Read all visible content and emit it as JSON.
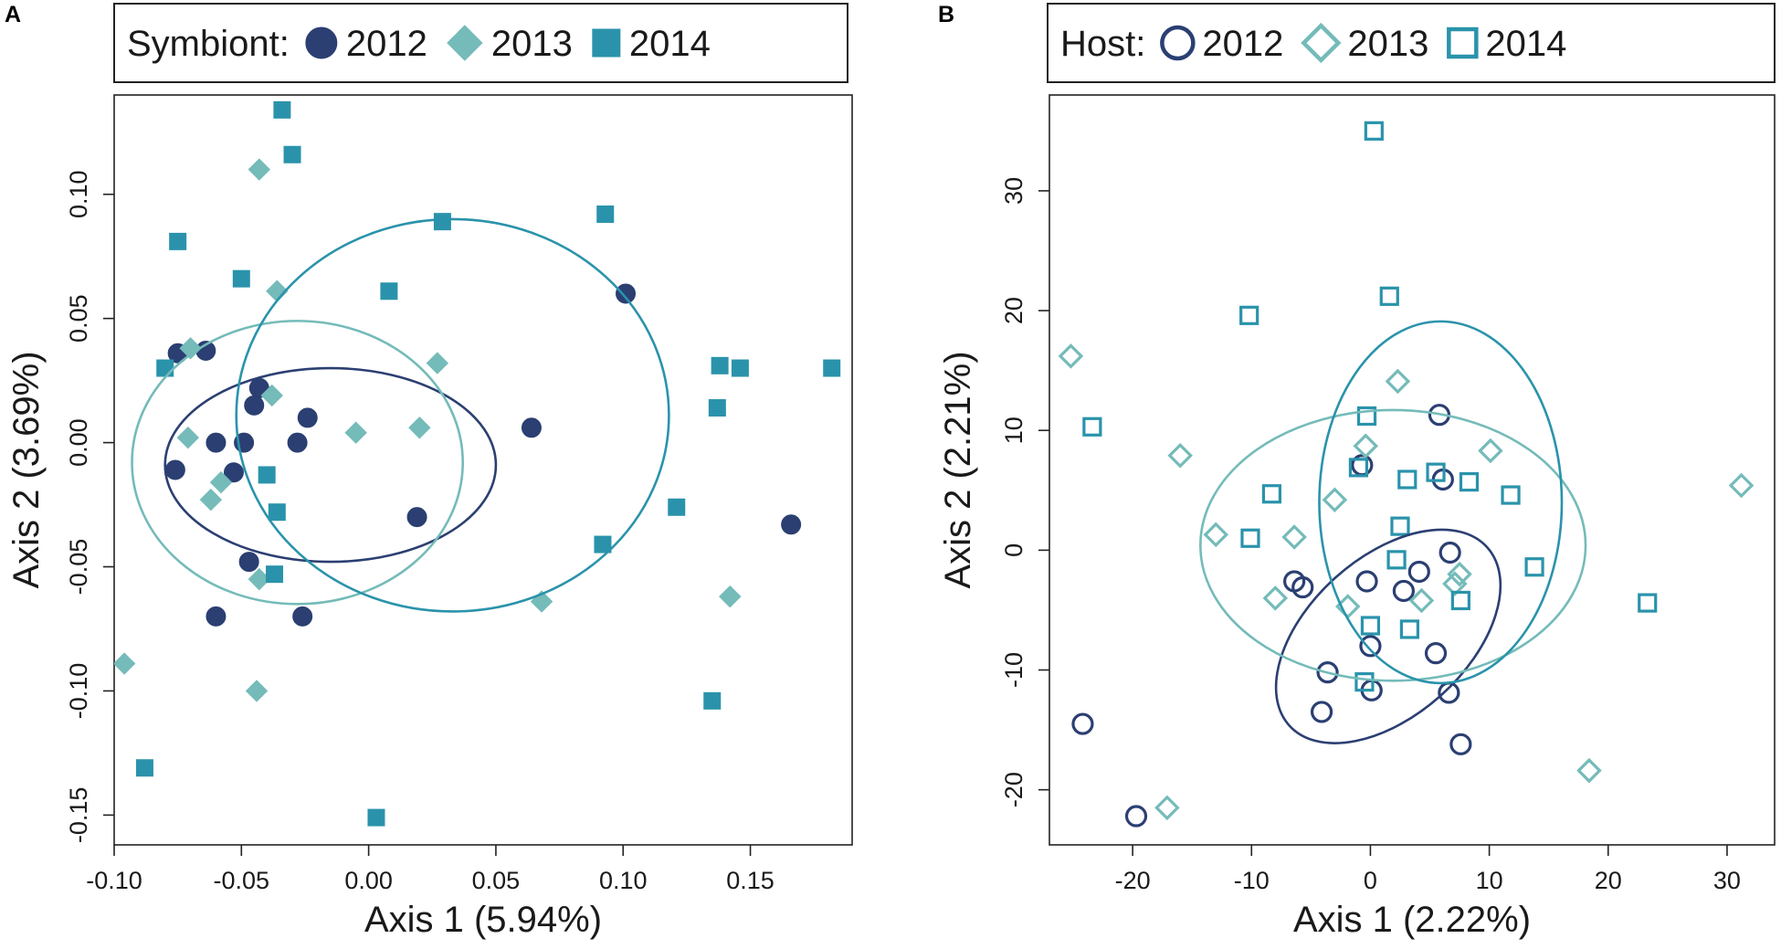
{
  "colors": {
    "y2012": "#2b3f72",
    "y2013": "#74bbb9",
    "y2014": "#2a93ab"
  },
  "chart_data": [
    {
      "type": "scatter",
      "panel": "A",
      "filled": true,
      "legend_title": "Symbiont:",
      "xlabel": "Axis 1 (5.94%)",
      "ylabel": "Axis 2 (3.69%)",
      "xlim": [
        -0.1,
        0.19
      ],
      "ylim": [
        -0.162,
        0.14
      ],
      "xticks": [
        -0.1,
        -0.05,
        0.0,
        0.05,
        0.1,
        0.15
      ],
      "xtick_labels": [
        "-0.10",
        "-0.05",
        "0.00",
        "0.05",
        "0.10",
        "0.15"
      ],
      "yticks": [
        -0.15,
        -0.1,
        -0.05,
        0.0,
        0.05,
        0.1
      ],
      "ytick_labels": [
        "-0.15",
        "-0.10",
        "-0.05",
        "0.00",
        "0.05",
        "0.10"
      ],
      "series": [
        {
          "name": "2012",
          "marker": "circle",
          "points": [
            [
              -0.075,
              0.036
            ],
            [
              -0.064,
              0.037
            ],
            [
              -0.043,
              0.022
            ],
            [
              -0.045,
              0.015
            ],
            [
              -0.024,
              0.01
            ],
            [
              -0.076,
              -0.011
            ],
            [
              -0.06,
              0.0
            ],
            [
              -0.049,
              0.0
            ],
            [
              -0.053,
              -0.012
            ],
            [
              -0.028,
              0.0
            ],
            [
              0.064,
              0.006
            ],
            [
              0.101,
              0.06
            ],
            [
              0.019,
              -0.03
            ],
            [
              -0.047,
              -0.048
            ],
            [
              -0.06,
              -0.07
            ],
            [
              -0.026,
              -0.07
            ],
            [
              0.166,
              -0.033
            ]
          ],
          "ellipse": {
            "cx": -0.015,
            "cy": -0.009,
            "rx": 0.065,
            "ry": 0.039,
            "angle_deg": 0
          }
        },
        {
          "name": "2013",
          "marker": "diamond",
          "points": [
            [
              -0.043,
              0.11
            ],
            [
              -0.036,
              0.061
            ],
            [
              -0.07,
              0.038
            ],
            [
              -0.038,
              0.019
            ],
            [
              0.027,
              0.032
            ],
            [
              -0.071,
              0.002
            ],
            [
              -0.005,
              0.004
            ],
            [
              0.02,
              0.006
            ],
            [
              -0.058,
              -0.016
            ],
            [
              -0.062,
              -0.023
            ],
            [
              -0.043,
              -0.055
            ],
            [
              0.068,
              -0.064
            ],
            [
              0.142,
              -0.062
            ],
            [
              -0.096,
              -0.089
            ],
            [
              -0.044,
              -0.1
            ]
          ],
          "ellipse": {
            "cx": -0.028,
            "cy": -0.008,
            "rx": 0.065,
            "ry": 0.057,
            "angle_deg": 0
          }
        },
        {
          "name": "2014",
          "marker": "square",
          "points": [
            [
              -0.034,
              0.134
            ],
            [
              -0.03,
              0.116
            ],
            [
              0.029,
              0.089
            ],
            [
              0.093,
              0.092
            ],
            [
              -0.075,
              0.081
            ],
            [
              -0.05,
              0.066
            ],
            [
              0.008,
              0.061
            ],
            [
              -0.08,
              0.03
            ],
            [
              0.138,
              0.031
            ],
            [
              0.146,
              0.03
            ],
            [
              0.182,
              0.03
            ],
            [
              0.137,
              0.014
            ],
            [
              -0.04,
              -0.013
            ],
            [
              -0.036,
              -0.028
            ],
            [
              0.121,
              -0.026
            ],
            [
              0.092,
              -0.041
            ],
            [
              -0.037,
              -0.053
            ],
            [
              0.135,
              -0.104
            ],
            [
              -0.088,
              -0.131
            ],
            [
              0.003,
              -0.151
            ]
          ],
          "ellipse": {
            "cx": 0.033,
            "cy": 0.011,
            "rx": 0.085,
            "ry": 0.079,
            "angle_deg": 0
          }
        }
      ]
    },
    {
      "type": "scatter",
      "panel": "B",
      "filled": false,
      "legend_title": "Host:",
      "xlabel": "Axis 1 (2.22%)",
      "ylabel": "Axis 2 (2.21%)",
      "xlim": [
        -27,
        34
      ],
      "ylim": [
        -24.6,
        38
      ],
      "xticks": [
        -20,
        -10,
        0,
        10,
        20,
        30
      ],
      "xtick_labels": [
        "-20",
        "-10",
        "0",
        "10",
        "20",
        "30"
      ],
      "yticks": [
        -20,
        -10,
        0,
        10,
        20,
        30
      ],
      "ytick_labels": [
        "-20",
        "-10",
        "0",
        "10",
        "20",
        "30"
      ],
      "series": [
        {
          "name": "2012",
          "marker": "circle",
          "points": [
            [
              5.8,
              11.3
            ],
            [
              -0.7,
              7.1
            ],
            [
              6.1,
              5.9
            ],
            [
              6.7,
              -0.2
            ],
            [
              -0.3,
              -2.6
            ],
            [
              4.1,
              -1.8
            ],
            [
              -6.4,
              -2.6
            ],
            [
              -5.7,
              -3.1
            ],
            [
              2.8,
              -3.4
            ],
            [
              0.0,
              -8.0
            ],
            [
              5.5,
              -8.6
            ],
            [
              -3.6,
              -10.2
            ],
            [
              6.6,
              -11.9
            ],
            [
              0.1,
              -11.7
            ],
            [
              -4.1,
              -13.5
            ],
            [
              7.6,
              -16.2
            ],
            [
              -24.2,
              -14.5
            ],
            [
              -19.7,
              -22.2
            ]
          ],
          "ellipse": {
            "cx": 1.5,
            "cy": -7.2,
            "rx": 11.2,
            "ry": 6.6,
            "angle_deg": -42
          }
        },
        {
          "name": "2013",
          "marker": "diamond",
          "points": [
            [
              -25.2,
              16.2
            ],
            [
              2.3,
              14.1
            ],
            [
              10.1,
              8.3
            ],
            [
              -16.0,
              7.9
            ],
            [
              -0.4,
              8.7
            ],
            [
              -3.0,
              4.2
            ],
            [
              -13.0,
              1.3
            ],
            [
              -6.4,
              1.1
            ],
            [
              7.5,
              -2.0
            ],
            [
              7.1,
              -2.8
            ],
            [
              -8.0,
              -4.0
            ],
            [
              -1.9,
              -4.7
            ],
            [
              4.3,
              -4.2
            ],
            [
              31.2,
              5.4
            ],
            [
              18.4,
              -18.4
            ],
            [
              -17.1,
              -21.5
            ]
          ],
          "ellipse": {
            "cx": 1.9,
            "cy": 0.4,
            "rx": 16.2,
            "ry": 11.3,
            "angle_deg": 0
          }
        },
        {
          "name": "2014",
          "marker": "square",
          "points": [
            [
              0.3,
              35.0
            ],
            [
              1.6,
              21.2
            ],
            [
              -10.2,
              19.6
            ],
            [
              -23.4,
              10.3
            ],
            [
              -0.3,
              11.2
            ],
            [
              -1.0,
              6.9
            ],
            [
              5.5,
              6.5
            ],
            [
              3.1,
              5.9
            ],
            [
              8.3,
              5.7
            ],
            [
              11.8,
              4.6
            ],
            [
              -8.3,
              4.7
            ],
            [
              -10.1,
              1.0
            ],
            [
              2.5,
              2.0
            ],
            [
              2.2,
              -0.8
            ],
            [
              13.8,
              -1.4
            ],
            [
              7.6,
              -4.2
            ],
            [
              0.0,
              -6.3
            ],
            [
              3.3,
              -6.6
            ],
            [
              23.3,
              -4.4
            ],
            [
              -0.5,
              -11.0
            ]
          ],
          "ellipse": {
            "cx": 5.9,
            "cy": 4.0,
            "rx": 10.2,
            "ry": 15.1,
            "angle_deg": 0
          }
        }
      ]
    }
  ]
}
